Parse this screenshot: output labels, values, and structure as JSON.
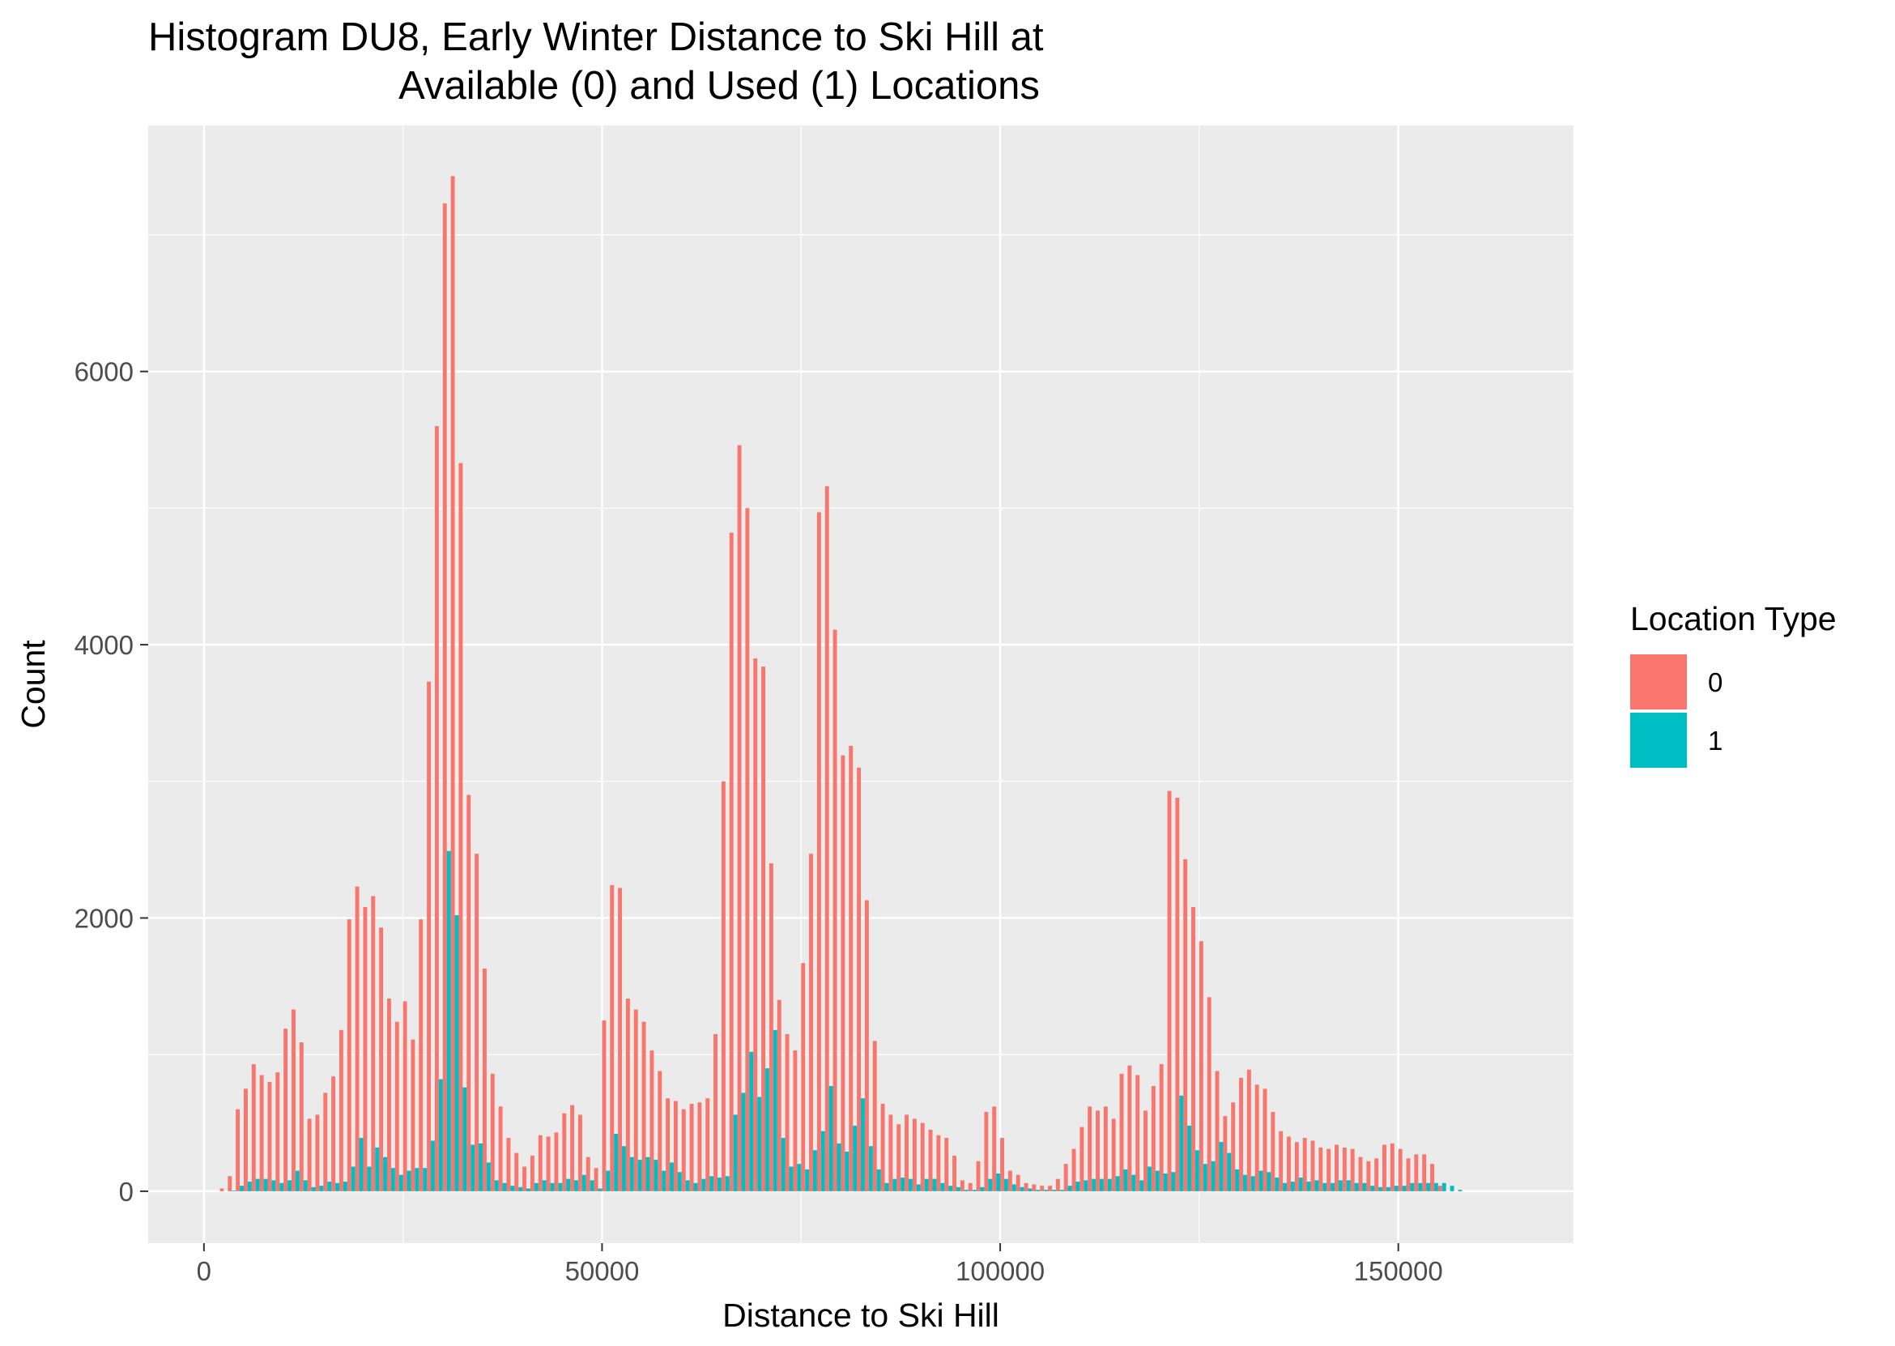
{
  "chart_data": {
    "type": "bar",
    "title_lines": [
      "Histogram DU8, Early Winter Distance to Ski Hill at",
      "Available (0) and Used (1) Locations"
    ],
    "xlabel": "Distance to Ski Hill",
    "ylabel": "Count",
    "xlim": [
      -7000,
      172000
    ],
    "ylim": [
      -380,
      7800
    ],
    "x_ticks": [
      0,
      50000,
      100000,
      150000
    ],
    "x_tick_labels": [
      "0",
      "50000",
      "100000",
      "150000"
    ],
    "y_ticks": [
      0,
      2000,
      4000,
      6000
    ],
    "y_tick_labels": [
      "0",
      "2000",
      "4000",
      "6000"
    ],
    "grid": true,
    "legend": {
      "title": "Location Type",
      "position": "right",
      "entries": [
        {
          "label": "0",
          "color": "#F8766D"
        },
        {
          "label": "1",
          "color": "#00BFC4"
        }
      ]
    },
    "bin_width": 1000,
    "bin_start": 2000,
    "series": [
      {
        "name": "0",
        "color": "#F8766D",
        "values": [
          20,
          110,
          600,
          750,
          930,
          850,
          800,
          870,
          1190,
          1330,
          1090,
          530,
          560,
          720,
          840,
          1180,
          1990,
          2230,
          2080,
          2160,
          1930,
          1410,
          1240,
          1390,
          1110,
          1990,
          3730,
          5600,
          7230,
          7430,
          5330,
          2900,
          2470,
          1630,
          860,
          620,
          390,
          280,
          180,
          260,
          410,
          400,
          430,
          570,
          630,
          560,
          250,
          170,
          1250,
          2240,
          2220,
          1410,
          1330,
          1240,
          1030,
          880,
          680,
          660,
          600,
          640,
          650,
          680,
          1150,
          3000,
          4820,
          5460,
          5000,
          3900,
          3840,
          2400,
          1400,
          1150,
          1030,
          1670,
          2470,
          4970,
          5160,
          4110,
          3190,
          3260,
          3100,
          2130,
          1100,
          640,
          560,
          490,
          560,
          530,
          500,
          450,
          410,
          390,
          260,
          80,
          60,
          220,
          580,
          620,
          390,
          150,
          120,
          60,
          50,
          40,
          40,
          90,
          200,
          310,
          470,
          620,
          590,
          620,
          530,
          860,
          920,
          850,
          590,
          770,
          930,
          2930,
          2880,
          2430,
          2080,
          1830,
          1420,
          880,
          550,
          650,
          830,
          890,
          780,
          750,
          580,
          440,
          400,
          360,
          390,
          370,
          320,
          310,
          340,
          320,
          310,
          250,
          220,
          240,
          340,
          350,
          310,
          240,
          270,
          270,
          200,
          40
        ]
      },
      {
        "name": "1",
        "color": "#00BFC4",
        "values": [
          0,
          5,
          40,
          70,
          90,
          90,
          80,
          60,
          80,
          150,
          80,
          30,
          40,
          70,
          60,
          70,
          180,
          390,
          180,
          320,
          250,
          170,
          120,
          150,
          170,
          170,
          370,
          820,
          2490,
          2020,
          760,
          340,
          350,
          210,
          80,
          60,
          40,
          30,
          20,
          60,
          80,
          60,
          60,
          90,
          80,
          120,
          80,
          20,
          150,
          420,
          330,
          250,
          230,
          250,
          230,
          150,
          210,
          140,
          80,
          60,
          90,
          110,
          100,
          110,
          560,
          720,
          1020,
          690,
          900,
          1180,
          390,
          180,
          200,
          160,
          300,
          440,
          770,
          350,
          290,
          480,
          680,
          330,
          160,
          60,
          90,
          100,
          90,
          50,
          90,
          90,
          60,
          40,
          30,
          10,
          10,
          30,
          90,
          130,
          90,
          50,
          30,
          20,
          10,
          10,
          10,
          10,
          40,
          70,
          80,
          90,
          90,
          90,
          110,
          160,
          120,
          80,
          180,
          150,
          130,
          140,
          700,
          480,
          300,
          200,
          220,
          360,
          280,
          160,
          120,
          110,
          150,
          140,
          100,
          60,
          70,
          100,
          70,
          80,
          60,
          60,
          80,
          80,
          60,
          60,
          40,
          30,
          30,
          40,
          40,
          60,
          60,
          60,
          60,
          60,
          40,
          10
        ]
      }
    ]
  }
}
